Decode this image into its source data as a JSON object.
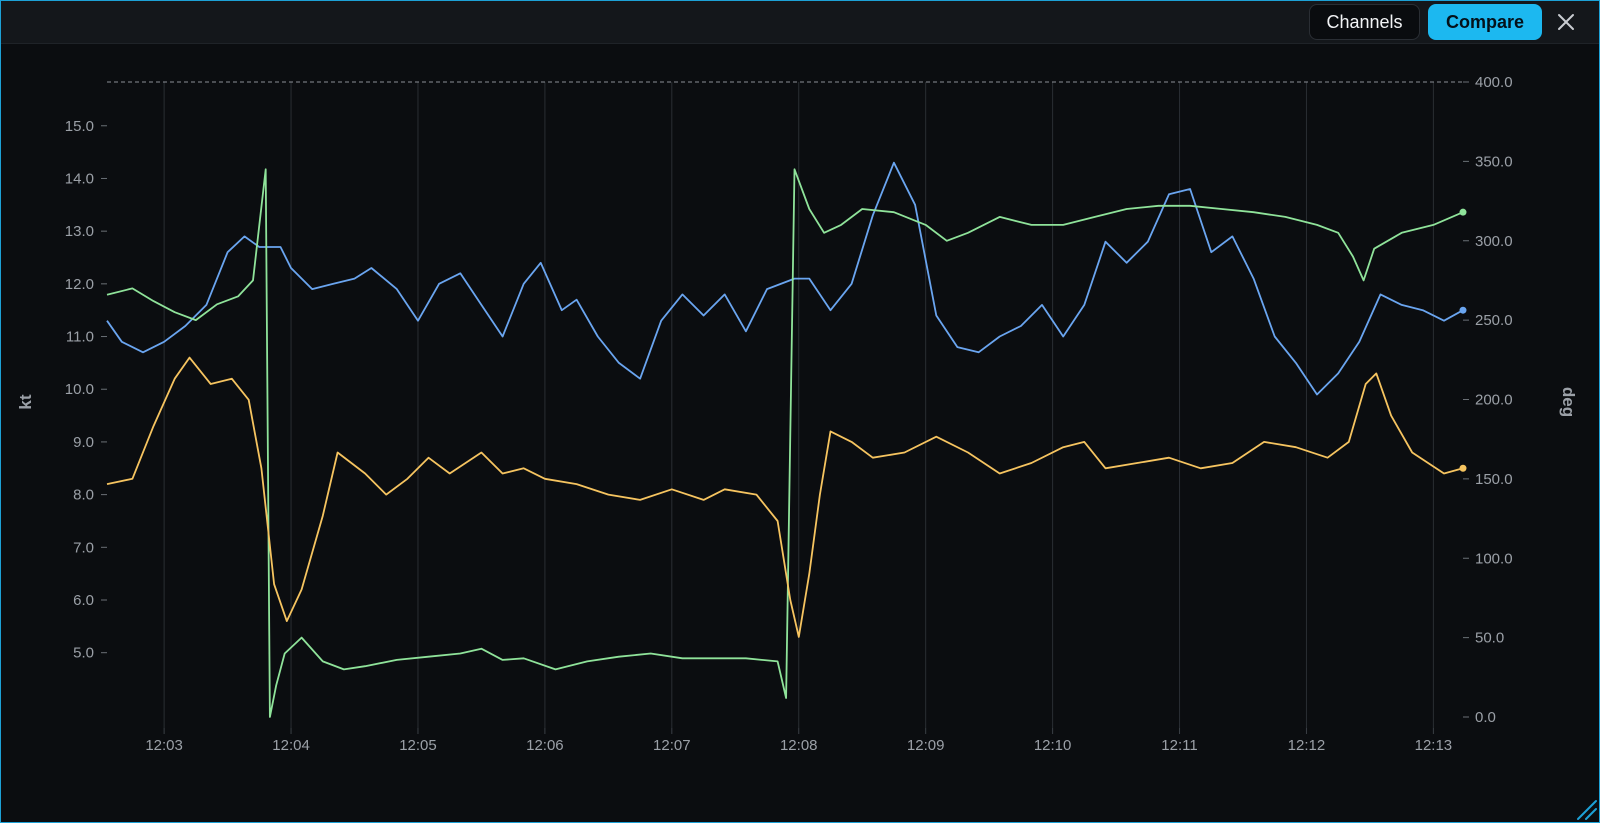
{
  "toolbar": {
    "channels_label": "Channels",
    "compare_label": "Compare",
    "close_icon": "close-icon"
  },
  "colors": {
    "accent": "#1cb8f0",
    "blue": "#6aa5f0",
    "green": "#8fe39a",
    "orange": "#f6c460"
  },
  "chart_data": {
    "type": "line",
    "x_ticks": [
      "12:03",
      "12:04",
      "12:05",
      "12:06",
      "12:07",
      "12:08",
      "12:09",
      "12:10",
      "12:11",
      "12:12",
      "12:13"
    ],
    "x_range": [
      "12:02:33",
      "12:13:14"
    ],
    "left_axis": {
      "label": "kt",
      "range": [
        3.4,
        16.4
      ],
      "ticks": [
        "15.0",
        "14.0",
        "13.0",
        "12.0",
        "11.0",
        "10.0",
        "9.0",
        "8.0",
        "7.0",
        "6.0",
        "5.0"
      ]
    },
    "right_axis": {
      "label": "deg",
      "range": [
        0,
        400
      ],
      "ticks": [
        "400.0",
        "350.0",
        "300.0",
        "250.0",
        "200.0",
        "150.0",
        "100.0",
        "50.0",
        "0.0"
      ]
    },
    "grid": {
      "vertical": true,
      "horizontal": false,
      "top_dashed_line_deg": 400
    },
    "series": [
      {
        "color": "blue",
        "axis": "left",
        "points": [
          [
            "12:02:33",
            11.3
          ],
          [
            "12:02:40",
            10.9
          ],
          [
            "12:02:50",
            10.7
          ],
          [
            "12:03:00",
            10.9
          ],
          [
            "12:03:10",
            11.2
          ],
          [
            "12:03:20",
            11.6
          ],
          [
            "12:03:30",
            12.6
          ],
          [
            "12:03:38",
            12.9
          ],
          [
            "12:03:45",
            12.7
          ],
          [
            "12:03:55",
            12.7
          ],
          [
            "12:04:00",
            12.3
          ],
          [
            "12:04:10",
            11.9
          ],
          [
            "12:04:20",
            12.0
          ],
          [
            "12:04:30",
            12.1
          ],
          [
            "12:04:38",
            12.3
          ],
          [
            "12:04:50",
            11.9
          ],
          [
            "12:05:00",
            11.3
          ],
          [
            "12:05:10",
            12.0
          ],
          [
            "12:05:20",
            12.2
          ],
          [
            "12:05:30",
            11.6
          ],
          [
            "12:05:40",
            11.0
          ],
          [
            "12:05:50",
            12.0
          ],
          [
            "12:05:58",
            12.4
          ],
          [
            "12:06:08",
            11.5
          ],
          [
            "12:06:15",
            11.7
          ],
          [
            "12:06:25",
            11.0
          ],
          [
            "12:06:35",
            10.5
          ],
          [
            "12:06:45",
            10.2
          ],
          [
            "12:06:55",
            11.3
          ],
          [
            "12:07:05",
            11.8
          ],
          [
            "12:07:15",
            11.4
          ],
          [
            "12:07:25",
            11.8
          ],
          [
            "12:07:35",
            11.1
          ],
          [
            "12:07:45",
            11.9
          ],
          [
            "12:07:58",
            12.1
          ],
          [
            "12:08:05",
            12.1
          ],
          [
            "12:08:15",
            11.5
          ],
          [
            "12:08:25",
            12.0
          ],
          [
            "12:08:35",
            13.3
          ],
          [
            "12:08:45",
            14.3
          ],
          [
            "12:08:55",
            13.5
          ],
          [
            "12:09:05",
            11.4
          ],
          [
            "12:09:15",
            10.8
          ],
          [
            "12:09:25",
            10.7
          ],
          [
            "12:09:35",
            11.0
          ],
          [
            "12:09:45",
            11.2
          ],
          [
            "12:09:55",
            11.6
          ],
          [
            "12:10:05",
            11.0
          ],
          [
            "12:10:15",
            11.6
          ],
          [
            "12:10:25",
            12.8
          ],
          [
            "12:10:35",
            12.4
          ],
          [
            "12:10:45",
            12.8
          ],
          [
            "12:10:55",
            13.7
          ],
          [
            "12:11:05",
            13.8
          ],
          [
            "12:11:15",
            12.6
          ],
          [
            "12:11:25",
            12.9
          ],
          [
            "12:11:35",
            12.1
          ],
          [
            "12:11:45",
            11.0
          ],
          [
            "12:11:55",
            10.5
          ],
          [
            "12:12:05",
            9.9
          ],
          [
            "12:12:15",
            10.3
          ],
          [
            "12:12:25",
            10.9
          ],
          [
            "12:12:35",
            11.8
          ],
          [
            "12:12:45",
            11.6
          ],
          [
            "12:12:55",
            11.5
          ],
          [
            "12:13:05",
            11.3
          ],
          [
            "12:13:14",
            11.5
          ]
        ]
      },
      {
        "color": "green",
        "axis": "right",
        "points": [
          [
            "12:02:33",
            266
          ],
          [
            "12:02:45",
            270
          ],
          [
            "12:02:55",
            262
          ],
          [
            "12:03:05",
            255
          ],
          [
            "12:03:15",
            250
          ],
          [
            "12:03:25",
            260
          ],
          [
            "12:03:35",
            265
          ],
          [
            "12:03:42",
            275
          ],
          [
            "12:03:48",
            345
          ],
          [
            "12:03:50",
            0
          ],
          [
            "12:03:53",
            20
          ],
          [
            "12:03:57",
            40
          ],
          [
            "12:04:05",
            50
          ],
          [
            "12:04:15",
            35
          ],
          [
            "12:04:25",
            30
          ],
          [
            "12:04:35",
            32
          ],
          [
            "12:04:50",
            36
          ],
          [
            "12:05:05",
            38
          ],
          [
            "12:05:20",
            40
          ],
          [
            "12:05:30",
            43
          ],
          [
            "12:05:40",
            36
          ],
          [
            "12:05:50",
            37
          ],
          [
            "12:06:05",
            30
          ],
          [
            "12:06:20",
            35
          ],
          [
            "12:06:35",
            38
          ],
          [
            "12:06:50",
            40
          ],
          [
            "12:07:05",
            37
          ],
          [
            "12:07:20",
            37
          ],
          [
            "12:07:35",
            37
          ],
          [
            "12:07:50",
            35
          ],
          [
            "12:07:54",
            12
          ],
          [
            "12:07:58",
            345
          ],
          [
            "12:08:05",
            320
          ],
          [
            "12:08:12",
            305
          ],
          [
            "12:08:20",
            310
          ],
          [
            "12:08:30",
            320
          ],
          [
            "12:08:45",
            318
          ],
          [
            "12:09:00",
            310
          ],
          [
            "12:09:10",
            300
          ],
          [
            "12:09:20",
            305
          ],
          [
            "12:09:35",
            315
          ],
          [
            "12:09:50",
            310
          ],
          [
            "12:10:05",
            310
          ],
          [
            "12:10:20",
            315
          ],
          [
            "12:10:35",
            320
          ],
          [
            "12:10:50",
            322
          ],
          [
            "12:11:05",
            322
          ],
          [
            "12:11:20",
            320
          ],
          [
            "12:11:35",
            318
          ],
          [
            "12:11:50",
            315
          ],
          [
            "12:12:05",
            310
          ],
          [
            "12:12:15",
            305
          ],
          [
            "12:12:22",
            290
          ],
          [
            "12:12:27",
            275
          ],
          [
            "12:12:32",
            295
          ],
          [
            "12:12:45",
            305
          ],
          [
            "12:13:00",
            310
          ],
          [
            "12:13:14",
            318
          ]
        ]
      },
      {
        "color": "orange",
        "axis": "left",
        "points": [
          [
            "12:02:33",
            8.2
          ],
          [
            "12:02:45",
            8.3
          ],
          [
            "12:02:55",
            9.3
          ],
          [
            "12:03:05",
            10.2
          ],
          [
            "12:03:12",
            10.6
          ],
          [
            "12:03:22",
            10.1
          ],
          [
            "12:03:32",
            10.2
          ],
          [
            "12:03:40",
            9.8
          ],
          [
            "12:03:46",
            8.5
          ],
          [
            "12:03:52",
            6.3
          ],
          [
            "12:03:58",
            5.6
          ],
          [
            "12:04:05",
            6.2
          ],
          [
            "12:04:15",
            7.6
          ],
          [
            "12:04:22",
            8.8
          ],
          [
            "12:04:35",
            8.4
          ],
          [
            "12:04:45",
            8.0
          ],
          [
            "12:04:55",
            8.3
          ],
          [
            "12:05:05",
            8.7
          ],
          [
            "12:05:15",
            8.4
          ],
          [
            "12:05:30",
            8.8
          ],
          [
            "12:05:40",
            8.4
          ],
          [
            "12:05:50",
            8.5
          ],
          [
            "12:06:00",
            8.3
          ],
          [
            "12:06:15",
            8.2
          ],
          [
            "12:06:30",
            8.0
          ],
          [
            "12:06:45",
            7.9
          ],
          [
            "12:07:00",
            8.1
          ],
          [
            "12:07:15",
            7.9
          ],
          [
            "12:07:25",
            8.1
          ],
          [
            "12:07:40",
            8.0
          ],
          [
            "12:07:50",
            7.5
          ],
          [
            "12:07:56",
            6.0
          ],
          [
            "12:08:00",
            5.3
          ],
          [
            "12:08:05",
            6.5
          ],
          [
            "12:08:10",
            8.0
          ],
          [
            "12:08:15",
            9.2
          ],
          [
            "12:08:25",
            9.0
          ],
          [
            "12:08:35",
            8.7
          ],
          [
            "12:08:50",
            8.8
          ],
          [
            "12:09:05",
            9.1
          ],
          [
            "12:09:20",
            8.8
          ],
          [
            "12:09:35",
            8.4
          ],
          [
            "12:09:50",
            8.6
          ],
          [
            "12:10:05",
            8.9
          ],
          [
            "12:10:15",
            9.0
          ],
          [
            "12:10:25",
            8.5
          ],
          [
            "12:10:40",
            8.6
          ],
          [
            "12:10:55",
            8.7
          ],
          [
            "12:11:10",
            8.5
          ],
          [
            "12:11:25",
            8.6
          ],
          [
            "12:11:40",
            9.0
          ],
          [
            "12:11:55",
            8.9
          ],
          [
            "12:12:10",
            8.7
          ],
          [
            "12:12:20",
            9.0
          ],
          [
            "12:12:28",
            10.1
          ],
          [
            "12:12:33",
            10.3
          ],
          [
            "12:12:40",
            9.5
          ],
          [
            "12:12:50",
            8.8
          ],
          [
            "12:13:05",
            8.4
          ],
          [
            "12:13:14",
            8.5
          ]
        ]
      }
    ]
  }
}
